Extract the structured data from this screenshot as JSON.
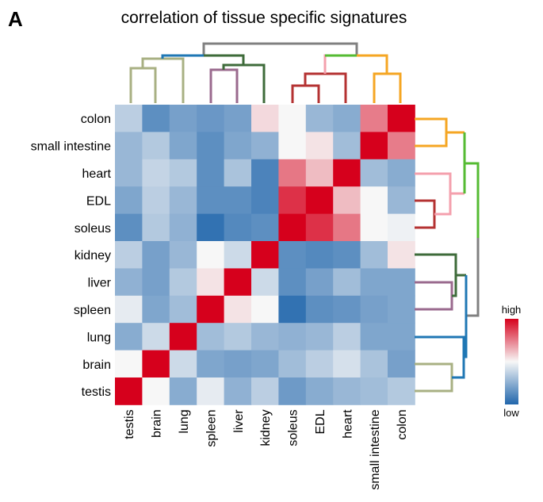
{
  "panel_label": "A",
  "chart_data": {
    "type": "heatmap",
    "title": "correlation of tissue specific signatures",
    "row_labels": [
      "colon",
      "small intestine",
      "heart",
      "EDL",
      "soleus",
      "kidney",
      "liver",
      "spleen",
      "lung",
      "brain",
      "testis"
    ],
    "col_labels": [
      "testis",
      "brain",
      "lung",
      "spleen",
      "liver",
      "kidney",
      "soleus",
      "EDL",
      "heart",
      "small intestine",
      "colon"
    ],
    "values": [
      [
        0.36,
        0.14,
        0.2,
        0.17,
        0.2,
        0.56,
        0.5,
        0.28,
        0.24,
        0.75,
        1.0
      ],
      [
        0.28,
        0.34,
        0.22,
        0.14,
        0.22,
        0.26,
        0.5,
        0.54,
        0.3,
        1.0,
        0.75
      ],
      [
        0.28,
        0.38,
        0.34,
        0.14,
        0.32,
        0.1,
        0.76,
        0.62,
        1.0,
        0.3,
        0.24
      ],
      [
        0.22,
        0.36,
        0.28,
        0.14,
        0.14,
        0.1,
        0.9,
        1.0,
        0.62,
        0.5,
        0.28
      ],
      [
        0.14,
        0.34,
        0.26,
        0.04,
        0.12,
        0.14,
        1.0,
        0.9,
        0.76,
        0.5,
        0.48
      ],
      [
        0.36,
        0.2,
        0.28,
        0.5,
        0.4,
        1.0,
        0.14,
        0.12,
        0.14,
        0.3,
        0.54
      ],
      [
        0.26,
        0.2,
        0.34,
        0.54,
        1.0,
        0.4,
        0.14,
        0.2,
        0.3,
        0.22,
        0.22
      ],
      [
        0.46,
        0.22,
        0.3,
        1.0,
        0.54,
        0.5,
        0.04,
        0.14,
        0.16,
        0.2,
        0.22
      ],
      [
        0.24,
        0.4,
        1.0,
        0.3,
        0.34,
        0.28,
        0.26,
        0.28,
        0.36,
        0.22,
        0.22
      ],
      [
        0.5,
        1.0,
        0.4,
        0.22,
        0.2,
        0.22,
        0.3,
        0.36,
        0.42,
        0.32,
        0.2
      ],
      [
        1.0,
        0.5,
        0.24,
        0.46,
        0.26,
        0.36,
        0.18,
        0.24,
        0.28,
        0.3,
        0.34
      ]
    ],
    "colorbar": {
      "high_label": "high",
      "low_label": "low",
      "low_color": "#2166ac",
      "mid_color": "#f7f7f7",
      "high_color": "#d6001c"
    },
    "dendrogram_colors": {
      "top_root": "#808080",
      "row_root": "#808080",
      "brain_testis": "#a8b083",
      "blue_group": "#1f77b4",
      "spleen_liver": "#9a6a8e",
      "kidney_group": "#3e6b3a",
      "muscle_root": "#55bb33",
      "heart_group": "#f4a0ad",
      "soleus_edl": "#b43232",
      "gut_group": "#f5a623"
    }
  }
}
